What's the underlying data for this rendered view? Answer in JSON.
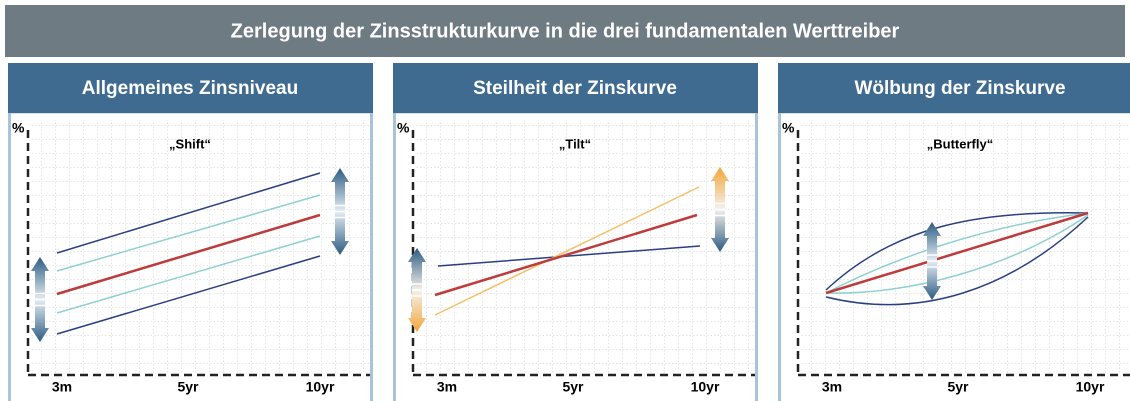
{
  "header": {
    "title": "Zerlegung der Zinsstrukturkurve in die drei fundamentalen Werttreiber"
  },
  "panels": [
    {
      "title": "Allgemeines Zinsniveau",
      "subtitle": "„Shift“",
      "y_label": "%",
      "x_labels": [
        "3m",
        "5yr",
        "10yr"
      ]
    },
    {
      "title": "Steilheit der Zinskurve",
      "subtitle": "„Tilt“",
      "y_label": "%",
      "x_labels": [
        "3m",
        "5yr",
        "10yr"
      ]
    },
    {
      "title": "Wölbung der Zinskurve",
      "subtitle": "„Butterfly“",
      "y_label": "%",
      "x_labels": [
        "3m",
        "5yr",
        "10yr"
      ]
    }
  ]
}
